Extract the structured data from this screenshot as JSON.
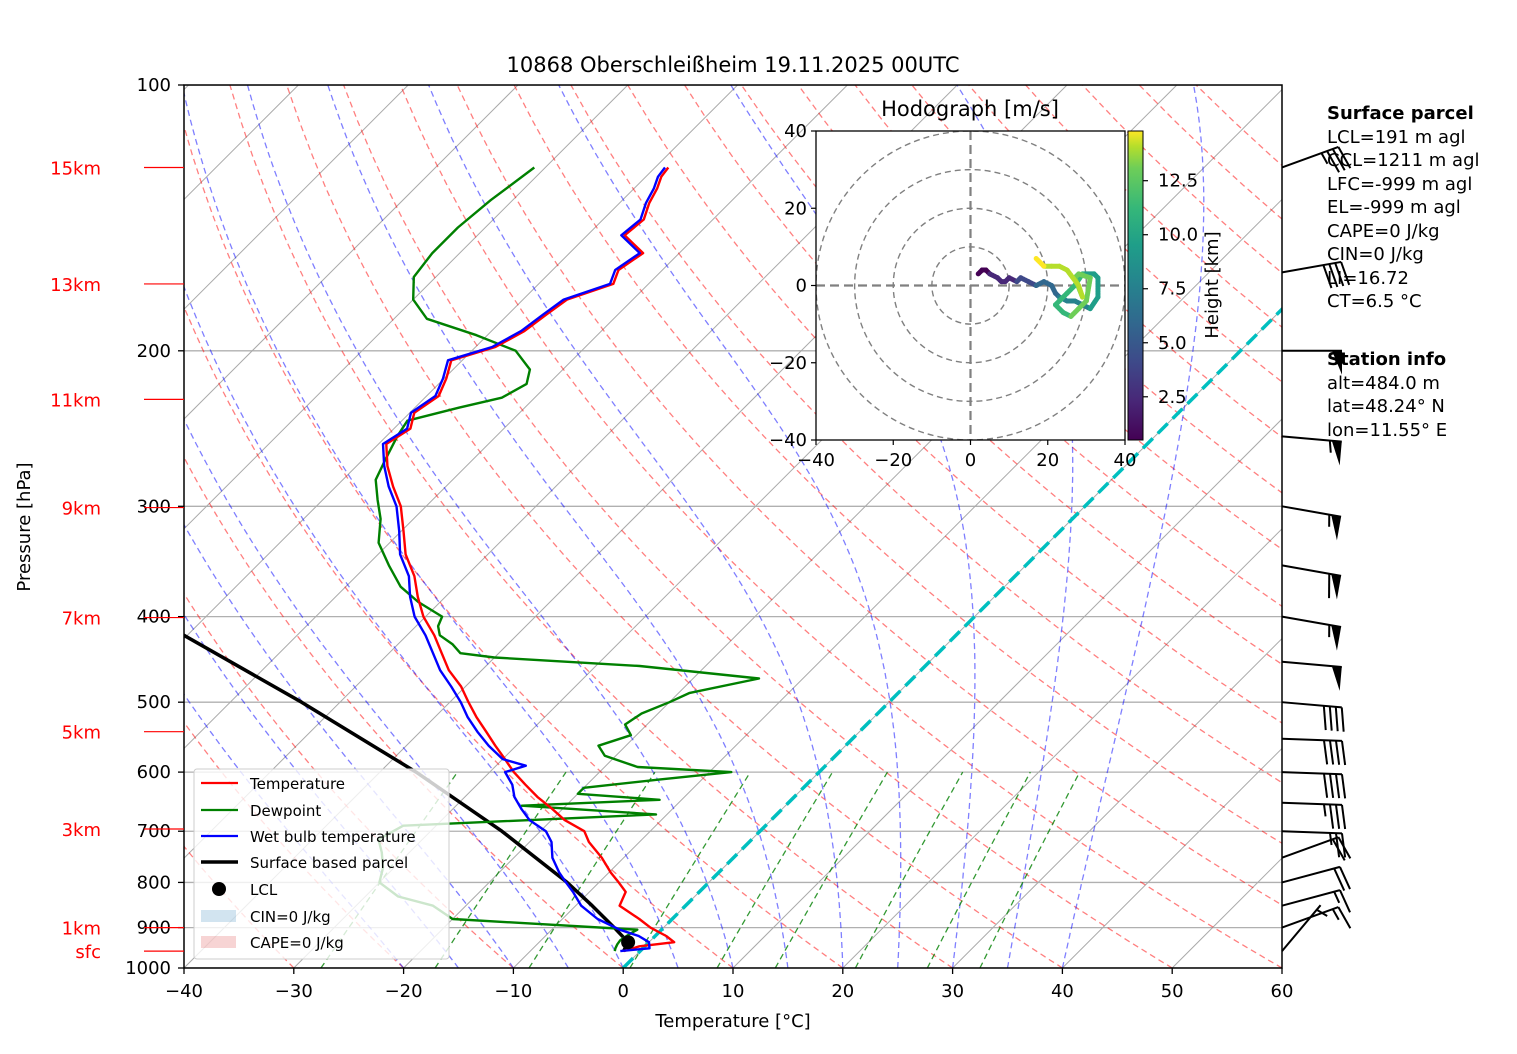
{
  "chart_data": {
    "type": "line",
    "subtype": "skew-T log-p diagram",
    "title": "10868 Oberschleißheim 19.11.2025 00UTC",
    "xlabel": "Temperature [°C]",
    "ylabel": "Pressure [hPa]",
    "xlim": [
      -40,
      60
    ],
    "ylim": [
      1000,
      100
    ],
    "yscale": "log",
    "grid": true,
    "x_ticks": [
      "−40",
      "−30",
      "−20",
      "−10",
      "0",
      "10",
      "20",
      "30",
      "40",
      "50",
      "60"
    ],
    "x_tick_values": [
      -40,
      -30,
      -20,
      -10,
      0,
      10,
      20,
      30,
      40,
      50,
      60
    ],
    "y_ticks": [
      "100",
      "200",
      "300",
      "400",
      "500",
      "600",
      "700",
      "800",
      "900",
      "1000"
    ],
    "y_tick_values": [
      100,
      200,
      300,
      400,
      500,
      600,
      700,
      800,
      900,
      1000
    ],
    "height_labels": [
      {
        "label": "15km",
        "p": 124
      },
      {
        "label": "13km",
        "p": 168
      },
      {
        "label": "11km",
        "p": 227
      },
      {
        "label": "9km",
        "p": 301
      },
      {
        "label": "7km",
        "p": 401
      },
      {
        "label": "5km",
        "p": 540
      },
      {
        "label": "3km",
        "p": 696
      },
      {
        "label": "1km",
        "p": 900
      },
      {
        "label": "sfc",
        "p": 957
      }
    ],
    "legend": {
      "location": "lower-left",
      "entries": [
        "Temperature",
        "Dewpoint",
        "Wet bulb temperature",
        "Surface based parcel",
        "LCL",
        "CIN=0 J/kg",
        "CAPE=0 J/kg"
      ]
    },
    "series": [
      {
        "name": "Temperature",
        "color": "#ff0000",
        "p": [
          957,
          945,
          935,
          920,
          900,
          880,
          850,
          820,
          800,
          780,
          750,
          720,
          700,
          680,
          660,
          640,
          620,
          600,
          580,
          560,
          540,
          520,
          500,
          480,
          460,
          440,
          420,
          400,
          380,
          360,
          340,
          320,
          300,
          285,
          270,
          255,
          245,
          235,
          225,
          215,
          205,
          198,
          190,
          182,
          175,
          168,
          162,
          155,
          148,
          142,
          136,
          131,
          127,
          124
        ],
        "t": [
          -1.5,
          -0.5,
          2.3,
          1.0,
          -1.2,
          -3.0,
          -6.0,
          -6.7,
          -8.2,
          -9.8,
          -12.0,
          -14.6,
          -16.0,
          -18.8,
          -21.0,
          -23.4,
          -25.6,
          -27.8,
          -29.8,
          -31.9,
          -34.0,
          -36.2,
          -38.3,
          -40.4,
          -43.0,
          -45.2,
          -47.5,
          -50.2,
          -52.5,
          -54.7,
          -57.5,
          -59.8,
          -62.3,
          -64.8,
          -67.2,
          -69.3,
          -68.5,
          -69.6,
          -68.9,
          -69.8,
          -71.0,
          -68.2,
          -67.0,
          -66.5,
          -66.0,
          -63.2,
          -64.0,
          -63.3,
          -66.6,
          -66.3,
          -67.3,
          -67.9,
          -68.6,
          -68.8
        ]
      },
      {
        "name": "Dewpoint",
        "color": "#008000",
        "p": [
          957,
          950,
          940,
          930,
          915,
          905,
          880,
          850,
          830,
          800,
          770,
          740,
          715,
          690,
          670,
          655,
          645,
          635,
          625,
          612,
          600,
          592,
          575,
          560,
          545,
          530,
          515,
          500,
          488,
          470,
          455,
          445,
          440,
          430,
          420,
          410,
          400,
          385,
          370,
          350,
          330,
          310,
          295,
          280,
          265,
          250,
          240,
          232,
          226,
          218,
          210,
          200,
          192,
          184,
          175,
          165,
          155,
          145,
          135,
          124
        ],
        "t": [
          -2.3,
          -2.5,
          -2.7,
          -2.8,
          -2.5,
          -2.2,
          -20.0,
          -23.0,
          -27.0,
          -30.0,
          -31.0,
          -32.5,
          -34.0,
          -33.0,
          -11.0,
          -24.0,
          -12.0,
          -20.0,
          -20.0,
          -14.0,
          -8.0,
          -17.0,
          -21.0,
          -22.5,
          -20.5,
          -22.0,
          -21.5,
          -20.0,
          -19.0,
          -14.0,
          -26.0,
          -40.0,
          -43.5,
          -45.0,
          -47.0,
          -48.0,
          -48.5,
          -52.0,
          -55.0,
          -58.0,
          -61.0,
          -63.0,
          -65.0,
          -67.0,
          -68.0,
          -69.0,
          -69.5,
          -66.0,
          -63.0,
          -62.0,
          -63.0,
          -66.0,
          -71.0,
          -77.0,
          -80.0,
          -82.0,
          -82.5,
          -82.5,
          -82.0,
          -81.0
        ]
      },
      {
        "name": "Wet bulb temperature",
        "color": "#0000ff",
        "p": [
          957,
          950,
          935,
          920,
          905,
          880,
          850,
          820,
          800,
          780,
          750,
          720,
          700,
          680,
          660,
          640,
          620,
          600,
          590,
          580,
          560,
          540,
          520,
          500,
          480,
          460,
          440,
          420,
          400,
          380,
          360,
          340,
          320,
          300,
          285,
          270,
          255,
          245,
          235,
          225,
          215,
          205,
          198,
          190,
          182,
          175,
          168,
          162,
          155,
          148,
          142,
          136,
          131,
          127,
          124
        ],
        "t": [
          -1.8,
          0.6,
          0.0,
          -1.5,
          -3.8,
          -6.8,
          -9.5,
          -11.5,
          -13.0,
          -14.5,
          -16.5,
          -18.0,
          -19.5,
          -22.0,
          -23.8,
          -25.5,
          -26.8,
          -28.6,
          -27.3,
          -30.0,
          -32.5,
          -34.8,
          -37.0,
          -39.0,
          -41.3,
          -43.8,
          -46.0,
          -48.3,
          -51.0,
          -53.2,
          -55.2,
          -58.0,
          -60.2,
          -62.7,
          -65.2,
          -67.5,
          -69.6,
          -68.8,
          -69.9,
          -69.2,
          -70.1,
          -71.3,
          -68.5,
          -67.3,
          -66.8,
          -66.3,
          -63.5,
          -64.3,
          -63.6,
          -66.9,
          -66.6,
          -67.6,
          -68.2,
          -68.9,
          -69.1
        ]
      },
      {
        "name": "Surface based parcel",
        "color": "#000000",
        "p": [
          957,
          935,
          900,
          850,
          800,
          700,
          600,
          500,
          400,
          300,
          260
        ],
        "t": [
          -1.5,
          -1.9,
          -4.5,
          -8.5,
          -12.9,
          -23.5,
          -36.7,
          -53.5,
          -75.0,
          -103.0,
          -117.0
        ]
      }
    ],
    "lcl": {
      "p": 935,
      "t": -1.9
    },
    "cin_label": "CIN=0 J/kg",
    "cape_label": "CAPE=0 J/kg",
    "zero_isotherm_color": "#00bfbf",
    "background_lines": {
      "isotherms": "gray solid, every 10 °C",
      "dry_adiabats": "red dashed",
      "moist_adiabats": "blue dashed",
      "mixing_ratio": "green dashed"
    },
    "wind_barbs": [
      {
        "p": 124,
        "speed_kt": 35,
        "dir_deg": 250
      },
      {
        "p": 163,
        "speed_kt": 40,
        "dir_deg": 260
      },
      {
        "p": 200,
        "speed_kt": 50,
        "dir_deg": 270
      },
      {
        "p": 250,
        "speed_kt": 55,
        "dir_deg": 275
      },
      {
        "p": 300,
        "speed_kt": 55,
        "dir_deg": 280
      },
      {
        "p": 350,
        "speed_kt": 60,
        "dir_deg": 280
      },
      {
        "p": 400,
        "speed_kt": 55,
        "dir_deg": 280
      },
      {
        "p": 450,
        "speed_kt": 50,
        "dir_deg": 275
      },
      {
        "p": 500,
        "speed_kt": 40,
        "dir_deg": 275
      },
      {
        "p": 550,
        "speed_kt": 40,
        "dir_deg": 272
      },
      {
        "p": 600,
        "speed_kt": 40,
        "dir_deg": 272
      },
      {
        "p": 650,
        "speed_kt": 35,
        "dir_deg": 272
      },
      {
        "p": 700,
        "speed_kt": 25,
        "dir_deg": 272
      },
      {
        "p": 750,
        "speed_kt": 20,
        "dir_deg": 250
      },
      {
        "p": 800,
        "speed_kt": 20,
        "dir_deg": 255
      },
      {
        "p": 850,
        "speed_kt": 15,
        "dir_deg": 255
      },
      {
        "p": 900,
        "speed_kt": 15,
        "dir_deg": 250
      },
      {
        "p": 957,
        "speed_kt": 5,
        "dir_deg": 220
      }
    ],
    "hodograph": {
      "title": "Hodograph [m/s]",
      "xlim": [
        -40,
        40
      ],
      "ylim": [
        -40,
        40
      ],
      "x_ticks": [
        "−40",
        "−20",
        "0",
        "20",
        "40"
      ],
      "y_ticks": [
        "40",
        "20",
        "0",
        "−20",
        "−40"
      ],
      "tick_values": [
        -40,
        -20,
        0,
        20,
        40
      ],
      "rings": [
        10,
        20,
        30,
        40
      ],
      "colorbar": {
        "label": "Height [km]",
        "ticks": [
          "2.5",
          "5.0",
          "7.5",
          "10.0",
          "12.5"
        ],
        "tick_values": [
          2.5,
          5.0,
          7.5,
          10.0,
          12.5
        ],
        "range": [
          0.5,
          14.8
        ],
        "colormap": "viridis"
      },
      "u": [
        2,
        3,
        4,
        5,
        7,
        8,
        9,
        10,
        12,
        13,
        15,
        17,
        19,
        21,
        22,
        23,
        25,
        27,
        29,
        31,
        33,
        33,
        32,
        29,
        27,
        25,
        23,
        22,
        24,
        26,
        28,
        30,
        31,
        28,
        27,
        29,
        28,
        25,
        23,
        21,
        19,
        17
      ],
      "v": [
        3,
        4,
        4,
        3,
        2,
        1,
        1,
        2,
        1,
        2,
        1,
        0,
        1,
        0,
        -2,
        -3,
        -4,
        -4,
        -5,
        -6,
        -3,
        2,
        3,
        3,
        0,
        -2,
        -4,
        -5,
        -7,
        -8,
        -6,
        -4,
        2,
        3,
        2,
        -3,
        0,
        4,
        5,
        5,
        5,
        7
      ],
      "height_km": [
        0.5,
        0.8,
        1.1,
        1.4,
        1.8,
        2.1,
        2.4,
        2.8,
        3.2,
        3.6,
        4.0,
        4.5,
        5.0,
        5.5,
        6.0,
        6.5,
        7.0,
        7.3,
        7.6,
        8.0,
        8.4,
        8.8,
        9.2,
        9.6,
        10.0,
        10.2,
        10.4,
        10.6,
        10.8,
        11.0,
        11.2,
        11.4,
        11.6,
        11.9,
        12.2,
        12.5,
        12.8,
        13.2,
        13.6,
        14.0,
        14.4,
        14.8
      ]
    }
  },
  "info": {
    "surface_parcel": {
      "header": "Surface parcel",
      "lines": [
        "LCL=191 m agl",
        "CCL=1211 m agl",
        "LFC=-999 m agl",
        "EL=-999 m agl",
        "CAPE=0 J/kg",
        "CIN=0 J/kg",
        "LI=16.72",
        "CT=6.5 °C"
      ]
    },
    "station_info": {
      "header": "Station info",
      "lines": [
        "alt=484.0 m",
        "lat=48.24° N",
        "lon=11.55° E"
      ]
    }
  }
}
